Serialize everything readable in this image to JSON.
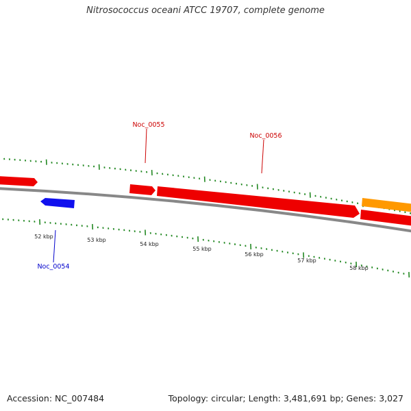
{
  "title": "Nitrosococcus oceani ATCC 19707, complete genome",
  "footer": {
    "accession": "Accession: NC_007484",
    "summary": "Topology: circular; Length: 3,481,691 bp; Genes: 3,027"
  },
  "colors": {
    "forward_gene": "#ee0000",
    "reverse_gene": "#1010ee",
    "orange_gene": "#ff9900",
    "backbone": "#888888",
    "ticks": "#228822",
    "label_forward": "#cc0000",
    "label_reverse": "#0000cc"
  },
  "scale_labels": [
    "52 kbp",
    "53 kbp",
    "54 kbp",
    "55 kbp",
    "56 kbp",
    "57 kbp",
    "58 kbp"
  ],
  "gene_labels": [
    {
      "name": "Noc_0055",
      "strand": "forward"
    },
    {
      "name": "Noc_0056",
      "strand": "forward"
    },
    {
      "name": "Noc_0054",
      "strand": "reverse"
    }
  ]
}
